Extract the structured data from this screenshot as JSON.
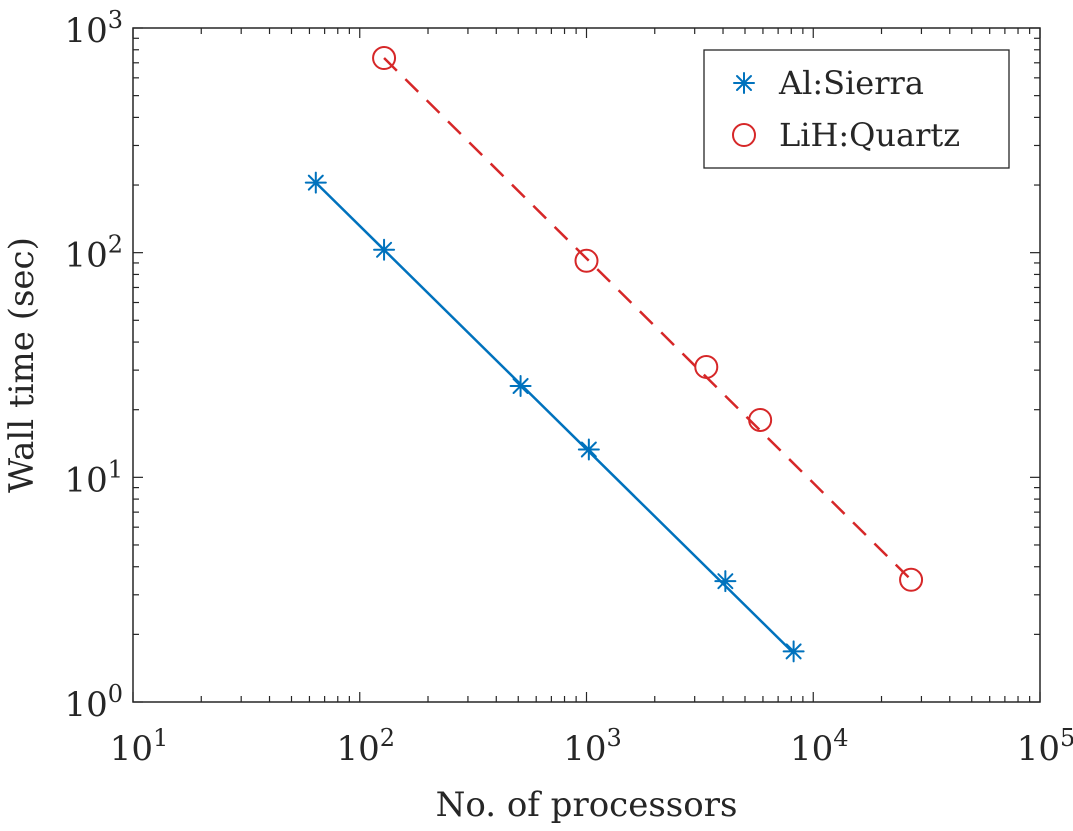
{
  "chart_data": {
    "type": "scatter",
    "xscale": "log",
    "yscale": "log",
    "xlim": [
      10,
      100000
    ],
    "ylim": [
      1,
      1000
    ],
    "xlabel": "No. of processors",
    "ylabel": "Wall time (sec)",
    "x_ticks": [
      {
        "value": 10,
        "base": "10",
        "exp": "1"
      },
      {
        "value": 100,
        "base": "10",
        "exp": "2"
      },
      {
        "value": 1000,
        "base": "10",
        "exp": "3"
      },
      {
        "value": 10000,
        "base": "10",
        "exp": "4"
      },
      {
        "value": 100000,
        "base": "10",
        "exp": "5"
      }
    ],
    "y_ticks": [
      {
        "value": 1,
        "base": "10",
        "exp": "0"
      },
      {
        "value": 10,
        "base": "10",
        "exp": "1"
      },
      {
        "value": 100,
        "base": "10",
        "exp": "2"
      },
      {
        "value": 1000,
        "base": "10",
        "exp": "3"
      }
    ],
    "grid": false,
    "legend_position": "top-right",
    "series": [
      {
        "name": "Al:Sierra",
        "color": "#0072BD",
        "marker": "asterisk",
        "line_style": "solid",
        "points": [
          {
            "x": 64,
            "y": 205
          },
          {
            "x": 128,
            "y": 103
          },
          {
            "x": 512,
            "y": 25.5
          },
          {
            "x": 1024,
            "y": 13.3
          },
          {
            "x": 4096,
            "y": 3.45
          },
          {
            "x": 8192,
            "y": 1.68
          }
        ],
        "fit": [
          [
            64,
            205
          ],
          [
            8192,
            1.65
          ]
        ]
      },
      {
        "name": "LiH:Quartz",
        "color": "#D62728",
        "marker": "circle",
        "line_style": "dashed",
        "points": [
          {
            "x": 128,
            "y": 735
          },
          {
            "x": 1000,
            "y": 92
          },
          {
            "x": 3375,
            "y": 31
          },
          {
            "x": 5832,
            "y": 18
          },
          {
            "x": 27000,
            "y": 3.5
          }
        ],
        "fit": [
          [
            128,
            735
          ],
          [
            27000,
            3.5
          ]
        ]
      }
    ]
  }
}
